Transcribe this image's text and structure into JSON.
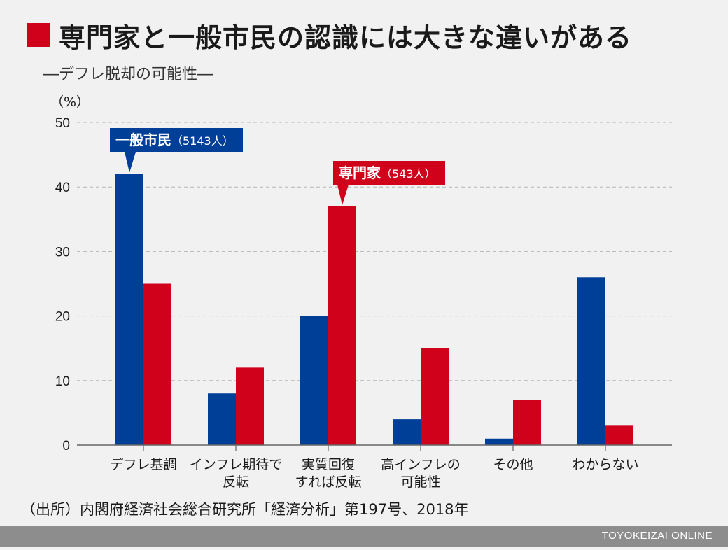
{
  "header": {
    "title": "専門家と一般市民の認識には大きな違いがある",
    "subtitle": "―デフレ脱却の可能性―"
  },
  "chart_data": {
    "type": "bar",
    "ylabel": "（%）",
    "ylim": [
      0,
      50
    ],
    "yticks": [
      0,
      10,
      20,
      30,
      40,
      50
    ],
    "grid": true,
    "categories": [
      [
        "デフレ基調"
      ],
      [
        "インフレ期待で",
        "反転"
      ],
      [
        "実質回復",
        "すれば反転"
      ],
      [
        "高インフレの",
        "可能性"
      ],
      [
        "その他"
      ],
      [
        "わからない"
      ]
    ],
    "series": [
      {
        "name": "一般市民（5143人）",
        "label_main": "一般市民",
        "label_count": "（5143人）",
        "color": "#003f98",
        "values": [
          42,
          8,
          20,
          4,
          1,
          26
        ]
      },
      {
        "name": "専門家（543人）",
        "label_main": "専門家",
        "label_count": "（543人）",
        "color": "#d0021b",
        "values": [
          25,
          12,
          37,
          15,
          7,
          3
        ]
      }
    ]
  },
  "source": "（出所）内閣府経済社会総合研究所「経済分析」第197号、2018年",
  "footer": {
    "brand": "TOYOKEIZAI ONLINE"
  }
}
